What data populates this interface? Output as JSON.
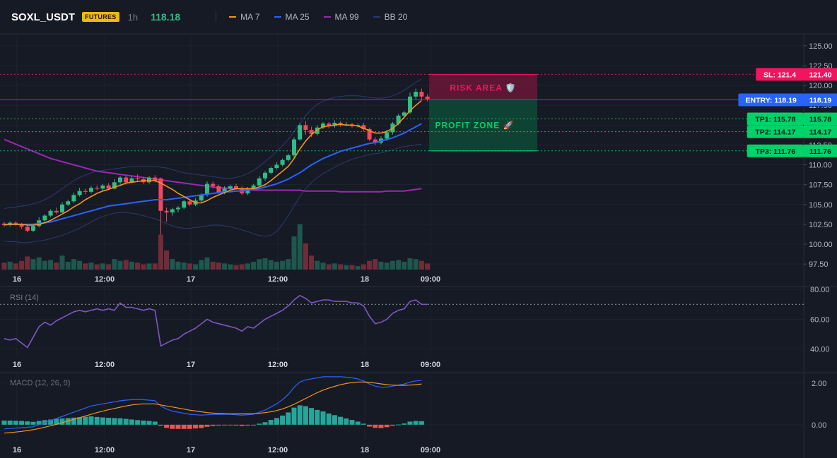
{
  "header": {
    "symbol": "SOXL_USDT",
    "badge": "FUTURES",
    "timeframe": "1h",
    "last_price": "118.18",
    "legend": [
      {
        "label": "MA 7",
        "color": "#f7931a"
      },
      {
        "label": "MA 25",
        "color": "#2962ff"
      },
      {
        "label": "MA 99",
        "color": "#9c27b0"
      },
      {
        "label": "BB 20",
        "color": "#2a3a6e"
      }
    ]
  },
  "colors": {
    "background": "#161a25",
    "up": "#2ebd85",
    "down": "#f6465d",
    "ma7": "#f7931a",
    "ma25": "#2962ff",
    "ma99": "#9c27b0",
    "bb": "#2a3a6e",
    "rsi": "#7e57c2",
    "macd": "#2962ff",
    "signal": "#f7931a"
  },
  "chart_data": {
    "type": "candlestick",
    "x_ticks": [
      "16",
      "12:00",
      "17",
      "12:00",
      "18",
      "09:00"
    ],
    "price_axis": {
      "ylim": [
        96.8,
        126.5
      ],
      "ticks": [
        "125.00",
        "122.50",
        "120.00",
        "117.50",
        "115.00",
        "112.50",
        "110.00",
        "107.50",
        "105.00",
        "102.50",
        "100.00",
        "97.50"
      ]
    },
    "candles": [
      [
        102.6,
        102.4,
        102.8,
        102.2,
        8
      ],
      [
        102.4,
        102.7,
        102.9,
        102.2,
        9
      ],
      [
        102.7,
        102.5,
        102.9,
        102.3,
        7
      ],
      [
        102.5,
        102.2,
        102.7,
        101.9,
        10
      ],
      [
        102.2,
        101.7,
        102.5,
        101.5,
        15
      ],
      [
        101.7,
        102.3,
        102.6,
        101.5,
        12
      ],
      [
        102.3,
        103.0,
        103.4,
        102.1,
        14
      ],
      [
        103.0,
        103.6,
        103.8,
        102.8,
        10
      ],
      [
        103.6,
        104.2,
        104.4,
        103.4,
        11
      ],
      [
        104.2,
        104.0,
        104.6,
        103.8,
        8
      ],
      [
        104.0,
        105.0,
        105.3,
        103.9,
        16
      ],
      [
        105.0,
        105.4,
        105.6,
        104.8,
        9
      ],
      [
        105.4,
        106.2,
        106.5,
        105.2,
        12
      ],
      [
        106.2,
        106.7,
        107.1,
        106.0,
        10
      ],
      [
        106.7,
        106.6,
        107.0,
        106.3,
        7
      ],
      [
        106.6,
        107.1,
        107.3,
        106.4,
        8
      ],
      [
        107.1,
        107.0,
        107.4,
        106.8,
        6
      ],
      [
        107.0,
        107.4,
        107.6,
        106.7,
        7
      ],
      [
        107.4,
        107.0,
        107.7,
        106.8,
        6
      ],
      [
        107.0,
        107.8,
        108.2,
        106.9,
        12
      ],
      [
        107.8,
        108.4,
        108.6,
        107.5,
        10
      ],
      [
        108.4,
        107.8,
        108.6,
        107.5,
        11
      ],
      [
        107.8,
        108.3,
        108.6,
        107.7,
        9
      ],
      [
        108.3,
        108.2,
        108.8,
        107.9,
        8
      ],
      [
        108.2,
        107.8,
        108.5,
        107.6,
        6
      ],
      [
        107.8,
        108.4,
        108.6,
        107.6,
        7
      ],
      [
        108.4,
        108.0,
        108.7,
        107.8,
        7
      ],
      [
        108.3,
        104.2,
        108.4,
        101.2,
        40
      ],
      [
        104.2,
        104.0,
        104.6,
        102.8,
        22
      ],
      [
        104.0,
        104.4,
        104.6,
        103.6,
        12
      ],
      [
        104.4,
        104.6,
        104.8,
        104.0,
        9
      ],
      [
        104.6,
        105.4,
        105.6,
        104.4,
        8
      ],
      [
        105.4,
        105.0,
        105.7,
        104.8,
        7
      ],
      [
        105.0,
        105.5,
        105.8,
        104.8,
        6
      ],
      [
        105.5,
        106.2,
        106.4,
        105.3,
        11
      ],
      [
        106.2,
        107.6,
        107.9,
        106.0,
        14
      ],
      [
        107.6,
        107.3,
        107.9,
        107.0,
        9
      ],
      [
        107.3,
        106.5,
        107.5,
        106.3,
        8
      ],
      [
        106.5,
        107.0,
        107.3,
        106.3,
        7
      ],
      [
        107.0,
        107.3,
        107.5,
        106.8,
        6
      ],
      [
        107.3,
        107.0,
        107.6,
        106.8,
        5
      ],
      [
        107.0,
        106.4,
        107.3,
        106.2,
        6
      ],
      [
        106.4,
        107.0,
        107.2,
        106.2,
        7
      ],
      [
        107.0,
        107.4,
        107.6,
        106.9,
        9
      ],
      [
        107.4,
        108.3,
        108.6,
        107.2,
        12
      ],
      [
        108.3,
        109.0,
        109.2,
        108.0,
        13
      ],
      [
        109.0,
        109.6,
        109.8,
        108.8,
        11
      ],
      [
        109.6,
        110.0,
        110.3,
        109.4,
        9
      ],
      [
        110.0,
        110.6,
        110.8,
        109.8,
        10
      ],
      [
        110.6,
        111.2,
        111.4,
        110.4,
        12
      ],
      [
        111.2,
        113.2,
        113.5,
        110.9,
        38
      ],
      [
        113.2,
        115.0,
        115.3,
        113.0,
        52
      ],
      [
        115.0,
        114.4,
        115.5,
        113.8,
        30
      ],
      [
        114.4,
        113.9,
        114.8,
        113.5,
        16
      ],
      [
        113.9,
        114.7,
        115.0,
        113.7,
        10
      ],
      [
        114.7,
        115.2,
        115.4,
        114.5,
        8
      ],
      [
        115.2,
        114.9,
        115.4,
        114.6,
        6
      ],
      [
        114.9,
        115.3,
        115.6,
        114.7,
        7
      ],
      [
        115.3,
        115.0,
        115.5,
        114.8,
        6
      ],
      [
        115.0,
        115.1,
        115.4,
        114.9,
        5
      ],
      [
        115.1,
        114.9,
        115.3,
        114.7,
        5
      ],
      [
        114.9,
        115.0,
        115.2,
        114.7,
        4
      ],
      [
        115.0,
        114.5,
        115.3,
        114.2,
        6
      ],
      [
        114.5,
        113.2,
        114.7,
        113.0,
        10
      ],
      [
        113.2,
        112.8,
        113.5,
        112.5,
        12
      ],
      [
        112.8,
        113.3,
        113.6,
        112.6,
        9
      ],
      [
        113.3,
        114.1,
        114.4,
        113.0,
        8
      ],
      [
        114.1,
        115.2,
        115.4,
        113.8,
        10
      ],
      [
        115.2,
        116.2,
        116.4,
        115.0,
        11
      ],
      [
        116.2,
        116.6,
        116.8,
        115.9,
        9
      ],
      [
        116.6,
        118.6,
        119.1,
        116.4,
        13
      ],
      [
        118.6,
        119.2,
        119.6,
        118.3,
        12
      ],
      [
        119.2,
        118.6,
        119.6,
        118.2,
        10
      ],
      [
        118.6,
        118.3,
        118.9,
        118.0,
        7
      ]
    ],
    "ma7": [
      102.5,
      102.5,
      102.5,
      102.5,
      102.4,
      102.4,
      102.5,
      102.7,
      103.0,
      103.4,
      103.8,
      104.2,
      104.7,
      105.1,
      105.6,
      106.0,
      106.4,
      106.7,
      106.9,
      107.2,
      107.4,
      107.7,
      107.8,
      107.9,
      108.0,
      108.0,
      108.0,
      107.7,
      107.3,
      106.9,
      106.4,
      106.0,
      105.6,
      105.2,
      105.2,
      105.5,
      105.9,
      106.2,
      106.5,
      106.8,
      107.0,
      107.0,
      107.0,
      107.0,
      107.2,
      107.5,
      108.0,
      108.6,
      109.2,
      109.8,
      110.8,
      112.0,
      113.0,
      113.8,
      114.4,
      114.8,
      114.9,
      115.0,
      115.1,
      115.0,
      115.0,
      114.9,
      114.6,
      114.3,
      114.0,
      114.0,
      114.2,
      114.6,
      115.2,
      116.0,
      116.8,
      117.5,
      118.1
    ],
    "ma25": [
      102.4,
      102.5,
      102.5,
      102.5,
      102.5,
      102.5,
      102.6,
      102.7,
      102.8,
      103.0,
      103.2,
      103.4,
      103.6,
      103.8,
      104.0,
      104.2,
      104.4,
      104.6,
      104.8,
      104.9,
      105.0,
      105.1,
      105.2,
      105.3,
      105.4,
      105.5,
      105.6,
      105.6,
      105.6,
      105.7,
      105.8,
      105.9,
      106.0,
      106.1,
      106.2,
      106.3,
      106.4,
      106.5,
      106.6,
      106.6,
      106.7,
      106.7,
      106.8,
      106.9,
      107.0,
      107.2,
      107.4,
      107.6,
      107.9,
      108.2,
      108.6,
      109.0,
      109.5,
      110.0,
      110.4,
      110.8,
      111.1,
      111.4,
      111.7,
      111.9,
      112.1,
      112.3,
      112.5,
      112.7,
      112.8,
      113.0,
      113.2,
      113.4,
      113.7,
      114.0,
      114.4,
      114.8,
      115.2
    ],
    "ma99": [
      113.2,
      112.9,
      112.6,
      112.3,
      112.0,
      111.7,
      111.4,
      111.1,
      110.8,
      110.6,
      110.4,
      110.2,
      110.0,
      109.8,
      109.6,
      109.4,
      109.2,
      109.1,
      109.0,
      108.9,
      108.8,
      108.7,
      108.6,
      108.5,
      108.4,
      108.3,
      108.2,
      108.1,
      108.0,
      107.9,
      107.8,
      107.7,
      107.6,
      107.5,
      107.4,
      107.3,
      107.2,
      107.1,
      107.1,
      107.0,
      107.0,
      106.9,
      106.9,
      106.8,
      106.8,
      106.8,
      106.8,
      106.8,
      106.8,
      106.8,
      106.8,
      106.8,
      106.7,
      106.7,
      106.7,
      106.7,
      106.7,
      106.7,
      106.6,
      106.6,
      106.6,
      106.6,
      106.6,
      106.6,
      106.6,
      106.6,
      106.7,
      106.7,
      106.7,
      106.7,
      106.8,
      106.9,
      107.0
    ],
    "bb_upper": [
      104.5,
      104.6,
      104.7,
      104.8,
      104.9,
      105.1,
      105.3,
      105.6,
      106.0,
      106.5,
      107.0,
      107.5,
      108.0,
      108.4,
      108.7,
      109.0,
      109.2,
      109.3,
      109.4,
      109.5,
      109.6,
      109.7,
      109.8,
      109.8,
      109.8,
      109.8,
      109.8,
      109.7,
      109.6,
      109.4,
      109.2,
      109.0,
      108.9,
      108.8,
      108.7,
      108.6,
      108.5,
      108.4,
      108.3,
      108.3,
      108.4,
      108.6,
      108.9,
      109.3,
      109.8,
      110.4,
      111.0,
      111.7,
      112.4,
      113.2,
      114.2,
      115.2,
      116.2,
      117.0,
      117.6,
      118.0,
      118.3,
      118.5,
      118.6,
      118.7,
      118.7,
      118.7,
      118.6,
      118.5,
      118.4,
      118.4,
      118.5,
      118.7,
      119.0,
      119.4,
      119.9,
      120.4,
      120.8
    ],
    "bb_lower": [
      100.4,
      100.3,
      100.3,
      100.2,
      100.2,
      100.3,
      100.4,
      100.5,
      100.7,
      100.9,
      101.1,
      101.4,
      101.7,
      102.0,
      102.4,
      102.8,
      103.2,
      103.5,
      103.7,
      103.9,
      104.0,
      104.0,
      103.9,
      103.8,
      103.6,
      103.4,
      103.2,
      102.9,
      102.6,
      102.3,
      102.1,
      102.0,
      102.0,
      102.1,
      102.2,
      102.3,
      102.4,
      102.4,
      102.3,
      102.2,
      102.0,
      101.8,
      101.6,
      101.3,
      101.1,
      101.0,
      101.1,
      101.6,
      102.5,
      103.6,
      104.8,
      106.0,
      107.0,
      107.8,
      108.4,
      108.9,
      109.3,
      109.7,
      110.1,
      110.4,
      110.7,
      110.9,
      111.1,
      111.3,
      111.4,
      111.5,
      111.7,
      111.9,
      112.1,
      112.3,
      112.4,
      112.5,
      112.6
    ],
    "levels": {
      "sl": {
        "label": "SL: 121.4",
        "value": 121.4,
        "value_label": "121.40",
        "color": "#f0155c"
      },
      "entry": {
        "label": "ENTRY: 118.19",
        "value": 118.19,
        "value_label": "118.19",
        "color": "#2962ff"
      },
      "tp1": {
        "label": "TP1: 115.78",
        "value": 115.78,
        "value_label": "115.78",
        "color": "#00d26a"
      },
      "tp2": {
        "label": "TP2: 114.17",
        "value": 114.17,
        "value_label": "114.17",
        "color": "#00d26a"
      },
      "tp3": {
        "label": "TP3: 111.76",
        "value": 111.76,
        "value_label": "111.76",
        "color": "#00d26a"
      }
    },
    "zones": {
      "risk": {
        "label": "RISK AREA 🛡️",
        "from": 121.4,
        "to": 118.19
      },
      "profit": {
        "label": "PROFIT ZONE 🚀",
        "from": 118.19,
        "to": 111.76
      }
    },
    "rsi": {
      "title": "RSI (14)",
      "ylim": [
        36,
        82
      ],
      "ticks": [
        "80.00",
        "60.00",
        "40.00"
      ],
      "overbought": 70,
      "values": [
        47,
        46,
        47,
        44,
        41,
        48,
        55,
        58,
        56,
        59,
        61,
        63,
        65,
        66,
        65,
        66,
        67,
        66,
        67,
        66,
        71,
        68,
        68,
        67,
        66,
        67,
        66,
        42,
        44,
        46,
        47,
        50,
        52,
        54,
        57,
        60,
        58,
        57,
        56,
        55,
        54,
        52,
        55,
        54,
        57,
        60,
        62,
        64,
        66,
        69,
        73,
        76,
        74,
        71,
        72,
        73,
        73,
        72,
        72,
        72,
        71,
        71,
        69,
        62,
        57,
        58,
        60,
        64,
        66,
        67,
        72,
        73,
        70,
        70
      ],
      "x_ticks": [
        "16",
        "12:00",
        "17",
        "12:00",
        "18",
        "09:00"
      ]
    },
    "macd": {
      "title": "MACD (12, 26, 9)",
      "ylim": [
        -0.75,
        2.5
      ],
      "ticks": [
        "2.00",
        "0.00"
      ],
      "macd": [
        -0.2,
        -0.18,
        -0.16,
        -0.14,
        -0.12,
        -0.1,
        0.0,
        0.1,
        0.2,
        0.3,
        0.4,
        0.5,
        0.6,
        0.7,
        0.8,
        0.9,
        0.95,
        1.0,
        1.05,
        1.1,
        1.15,
        1.18,
        1.2,
        1.2,
        1.2,
        1.18,
        1.15,
        0.9,
        0.75,
        0.65,
        0.6,
        0.55,
        0.5,
        0.48,
        0.46,
        0.48,
        0.5,
        0.5,
        0.5,
        0.5,
        0.48,
        0.46,
        0.48,
        0.5,
        0.6,
        0.7,
        0.85,
        1.0,
        1.2,
        1.45,
        1.8,
        2.05,
        2.15,
        2.2,
        2.25,
        2.3,
        2.3,
        2.3,
        2.3,
        2.28,
        2.25,
        2.2,
        2.1,
        1.95,
        1.85,
        1.8,
        1.8,
        1.85,
        1.9,
        1.95,
        2.05,
        2.1,
        2.12
      ],
      "signal": [
        -0.4,
        -0.38,
        -0.35,
        -0.32,
        -0.28,
        -0.24,
        -0.18,
        -0.12,
        -0.05,
        0.02,
        0.1,
        0.18,
        0.26,
        0.34,
        0.42,
        0.5,
        0.58,
        0.65,
        0.72,
        0.78,
        0.84,
        0.9,
        0.95,
        0.98,
        1.0,
        1.0,
        1.0,
        0.95,
        0.9,
        0.85,
        0.8,
        0.75,
        0.7,
        0.66,
        0.62,
        0.58,
        0.56,
        0.54,
        0.53,
        0.52,
        0.52,
        0.52,
        0.52,
        0.53,
        0.55,
        0.58,
        0.62,
        0.68,
        0.76,
        0.86,
        0.98,
        1.12,
        1.26,
        1.4,
        1.54,
        1.66,
        1.76,
        1.84,
        1.92,
        1.98,
        2.02,
        2.05,
        2.05,
        2.04,
        2.0,
        1.96,
        1.92,
        1.9,
        1.89,
        1.89,
        1.9,
        1.92,
        1.95
      ],
      "hist": [
        0.2,
        0.2,
        0.19,
        0.18,
        0.16,
        0.14,
        0.18,
        0.22,
        0.25,
        0.28,
        0.3,
        0.32,
        0.34,
        0.36,
        0.38,
        0.4,
        0.37,
        0.35,
        0.33,
        0.32,
        0.31,
        0.28,
        0.25,
        0.22,
        0.2,
        0.18,
        0.15,
        -0.05,
        -0.15,
        -0.2,
        -0.2,
        -0.2,
        -0.2,
        -0.18,
        -0.16,
        -0.1,
        -0.06,
        -0.04,
        -0.03,
        -0.02,
        -0.04,
        -0.06,
        -0.04,
        -0.03,
        0.05,
        0.12,
        0.23,
        0.32,
        0.44,
        0.59,
        0.82,
        0.93,
        0.89,
        0.8,
        0.71,
        0.64,
        0.54,
        0.46,
        0.38,
        0.3,
        0.23,
        0.15,
        0.05,
        -0.09,
        -0.15,
        -0.16,
        -0.12,
        -0.05,
        0.01,
        0.06,
        0.15,
        0.18,
        0.17
      ],
      "x_ticks": [
        "16",
        "12:00",
        "17",
        "12:00",
        "18",
        "09:00"
      ]
    }
  }
}
